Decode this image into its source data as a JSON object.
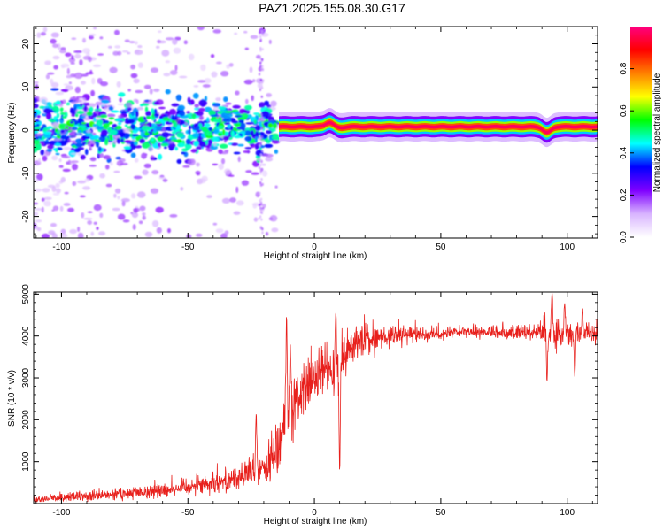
{
  "title": "PAZ1.2025.155.08.30.G17",
  "chart_data": [
    {
      "type": "heatmap",
      "name": "spectrogram",
      "xlabel": "Height of straight line (km)",
      "ylabel": "Frequency (Hz)",
      "xlim": [
        -111,
        112
      ],
      "ylim": [
        -25,
        24
      ],
      "xticks": [
        -100,
        -50,
        0,
        50,
        100
      ],
      "yticks": [
        -20,
        -10,
        0,
        10,
        20
      ],
      "colorbar": {
        "label": "Normalized spectral amplitude",
        "range": [
          0,
          1
        ],
        "ticks": [
          "0.0",
          "0.2",
          "0.4",
          "0.6",
          "0.8"
        ],
        "colors": [
          "#ffffff",
          "#d8b4ff",
          "#7f00ff",
          "#0000ff",
          "#00ffff",
          "#00ff00",
          "#ffff00",
          "#ff8000",
          "#ff0000",
          "#ff0080"
        ]
      },
      "tone_line": {
        "x_start": -14,
        "x_end": 112,
        "frequency_hz": 0.8,
        "amplitude": 0.97,
        "wiggles": [
          {
            "x": 6,
            "frequency_hz": 1.8
          },
          {
            "x": 10,
            "frequency_hz": 0.5
          },
          {
            "x": 92,
            "frequency_hz": -0.6
          }
        ]
      },
      "noise_region": {
        "x_range": [
          -111,
          -15
        ],
        "core_frequency_range_hz": [
          -6,
          6
        ],
        "spread_frequency_range_hz": [
          -25,
          24
        ]
      }
    },
    {
      "type": "line",
      "name": "snr",
      "xlabel": "Height of straight line (km)",
      "ylabel": "SNR (10 * v/v)",
      "xlim": [
        -111,
        112
      ],
      "ylim": [
        0,
        5050
      ],
      "xticks": [
        -100,
        -50,
        0,
        50,
        100
      ],
      "yticks": [
        1000,
        2000,
        3000,
        4000,
        5000
      ],
      "color": "#e8201c",
      "trend": {
        "x": [
          -111,
          -100,
          -80,
          -60,
          -40,
          -25,
          -18,
          -14,
          -12,
          -10,
          -8,
          -6,
          -4,
          0,
          5,
          9,
          12,
          18,
          25,
          30,
          40,
          50,
          60,
          70,
          80,
          88,
          92,
          96,
          100,
          105,
          112
        ],
        "y": [
          100,
          140,
          200,
          320,
          500,
          700,
          900,
          1300,
          2000,
          2300,
          2400,
          2500,
          2700,
          3000,
          3200,
          3400,
          3600,
          3850,
          3950,
          4000,
          4020,
          4060,
          4080,
          4090,
          4080,
          4100,
          4150,
          4000,
          4050,
          4050,
          4050
        ]
      },
      "noise_amplitude": {
        "x": [
          -111,
          -40,
          -20,
          -15,
          -10,
          -5,
          10,
          30,
          50,
          88,
          92,
          100,
          112
        ],
        "y": [
          70,
          200,
          350,
          600,
          700,
          600,
          500,
          200,
          130,
          150,
          400,
          250,
          200
        ]
      },
      "spikes": [
        {
          "x": -23,
          "y": 2150
        },
        {
          "x": -11,
          "y": 4480
        },
        {
          "x": -9.5,
          "y": 3800
        },
        {
          "x": 8.5,
          "y": 4560
        },
        {
          "x": 10,
          "y": 780
        },
        {
          "x": 92,
          "y": 2920
        },
        {
          "x": 94,
          "y": 5050
        },
        {
          "x": 99,
          "y": 4780
        },
        {
          "x": 103,
          "y": 3020
        },
        {
          "x": 106,
          "y": 4650
        }
      ]
    }
  ]
}
